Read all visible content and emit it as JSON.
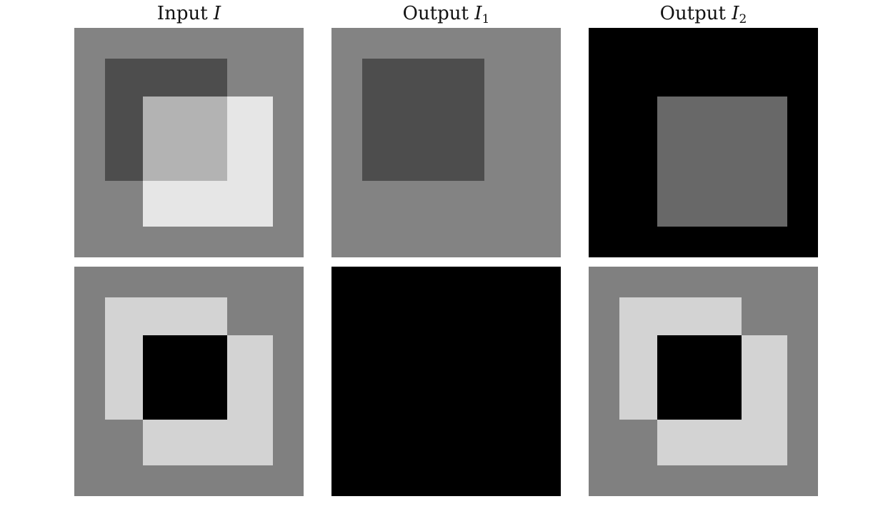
{
  "columns": [
    {
      "prefix": "Input",
      "variable": "I",
      "subscript": ""
    },
    {
      "prefix": "Output",
      "variable": "I",
      "subscript": "1"
    },
    {
      "prefix": "Output",
      "variable": "I",
      "subscript": "2"
    }
  ],
  "colors": {
    "background_gray": "#838383",
    "dark_gray": "#4d4d4d",
    "overlap_gray": "#b3b3b3",
    "near_white": "#e6e6e6",
    "black": "#000000",
    "mid_gray": "#686868",
    "light_gray": "#d3d3d3",
    "bottom_background_gray": "#808080"
  }
}
